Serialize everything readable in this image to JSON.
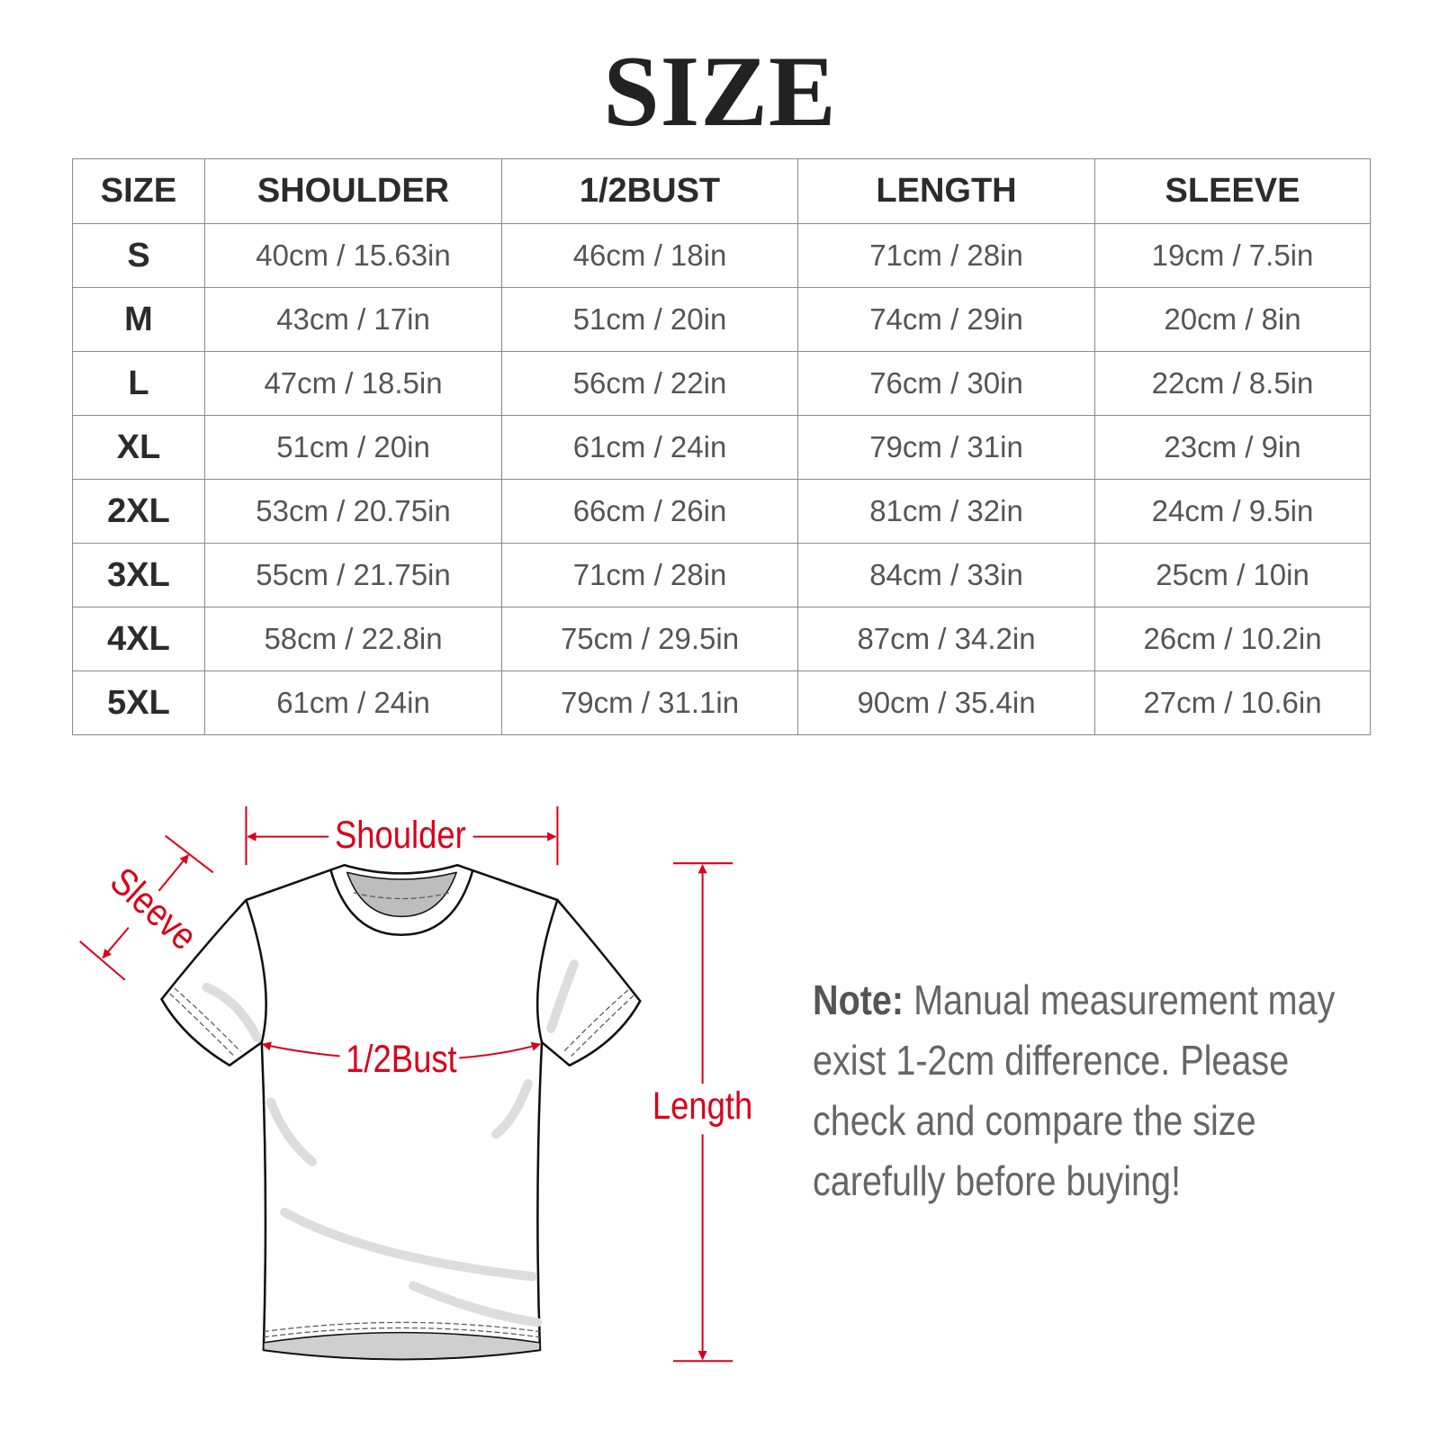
{
  "title": "SIZE",
  "table": {
    "headers": [
      "SIZE",
      "SHOULDER",
      "1/2BUST",
      "LENGTH",
      "SLEEVE"
    ],
    "rows": [
      [
        "S",
        "40cm / 15.63in",
        "46cm / 18in",
        "71cm / 28in",
        "19cm / 7.5in"
      ],
      [
        "M",
        "43cm / 17in",
        "51cm / 20in",
        "74cm / 29in",
        "20cm / 8in"
      ],
      [
        "L",
        "47cm / 18.5in",
        "56cm / 22in",
        "76cm / 30in",
        "22cm / 8.5in"
      ],
      [
        "XL",
        "51cm / 20in",
        "61cm / 24in",
        "79cm / 31in",
        "23cm / 9in"
      ],
      [
        "2XL",
        "53cm / 20.75in",
        "66cm / 26in",
        "81cm / 32in",
        "24cm / 9.5in"
      ],
      [
        "3XL",
        "55cm / 21.75in",
        "71cm / 28in",
        "84cm / 33in",
        "25cm / 10in"
      ],
      [
        "4XL",
        "58cm / 22.8in",
        "75cm / 29.5in",
        "87cm / 34.2in",
        "26cm / 10.2in"
      ],
      [
        "5XL",
        "61cm / 24in",
        "79cm / 31.1in",
        "90cm / 35.4in",
        "27cm / 10.6in"
      ]
    ]
  },
  "diagram": {
    "labels": {
      "shoulder": "Shoulder",
      "bust": "1/2Bust",
      "length": "Length",
      "sleeve": "Sleeve"
    },
    "accent_color": "#d9001b"
  },
  "note": {
    "label": "Note:",
    "lines": [
      "Manual measurement may",
      "exist 1-2cm difference. Please",
      "check and compare the size",
      "carefully before buying!"
    ]
  }
}
